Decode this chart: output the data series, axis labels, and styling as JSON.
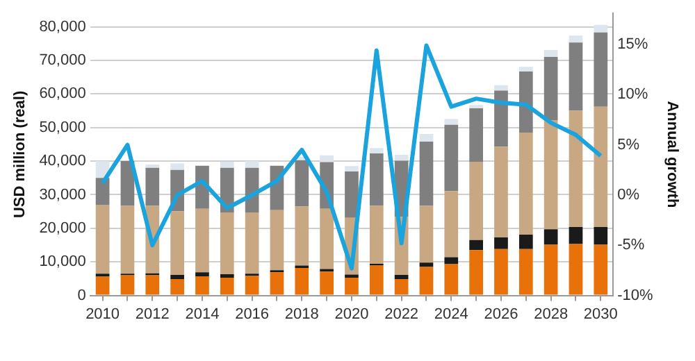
{
  "chart_data": {
    "type": "bar",
    "stacked": true,
    "ylabel": "USD million (real)",
    "y2label": "Annual growth",
    "categories": [
      "2010",
      null,
      "2012",
      null,
      "2014",
      null,
      "2016",
      null,
      "2018",
      null,
      "2020",
      null,
      "2022",
      null,
      "2024",
      null,
      "2026",
      null,
      "2028",
      null,
      "2030"
    ],
    "series": [
      {
        "color": "#e8710a",
        "values": [
          5600,
          6000,
          6000,
          4900,
          5700,
          5300,
          5800,
          6900,
          8200,
          7100,
          5300,
          8900,
          4900,
          8500,
          9300,
          13500,
          13800,
          13800,
          15100,
          15300,
          15100
        ]
      },
      {
        "color": "#1a1a1a",
        "values": [
          900,
          500,
          600,
          1200,
          1200,
          1000,
          700,
          600,
          700,
          800,
          900,
          500,
          1200,
          1300,
          2100,
          3000,
          3500,
          4300,
          4600,
          5100,
          5300
        ]
      },
      {
        "color": "#c8a882",
        "values": [
          20500,
          20200,
          20100,
          19000,
          18900,
          18400,
          18200,
          17900,
          17600,
          17900,
          16900,
          17300,
          17300,
          16900,
          19700,
          23300,
          27000,
          30400,
          32500,
          34600,
          35800
        ]
      },
      {
        "color": "#7f7f7f",
        "values": [
          8000,
          13300,
          11300,
          12300,
          12800,
          13300,
          13300,
          13200,
          13800,
          13900,
          13800,
          15600,
          16700,
          19100,
          19700,
          15900,
          16700,
          18200,
          18800,
          20300,
          22100
        ]
      },
      {
        "color": "#dde6ee",
        "values": [
          5000,
          0,
          1000,
          1900,
          null,
          1800,
          2000,
          null,
          1000,
          2000,
          1600,
          1600,
          1800,
          2300,
          1700,
          1000,
          1600,
          1400,
          2100,
          2100,
          2300
        ]
      },
      {
        "type": "line",
        "axis": "y2",
        "color": "#1aa3dc",
        "values": [
          1.2,
          5.0,
          -5.0,
          0.0,
          1.4,
          -1.3,
          0.0,
          1.4,
          4.5,
          0.3,
          -7.3,
          14.4,
          -4.8,
          14.9,
          8.8,
          9.6,
          9.2,
          9.0,
          7.2,
          6.0,
          3.9
        ]
      }
    ],
    "ylim": [
      0,
      84000
    ],
    "yticks": [
      0,
      {
        "value": 10000,
        "label": "10,000"
      },
      {
        "value": 20000,
        "label": "20,000"
      },
      {
        "value": 30000,
        "label": "30,000"
      },
      {
        "value": 40000,
        "label": "40,000"
      },
      {
        "value": 50000,
        "label": "50,000"
      },
      {
        "value": 60000,
        "label": "60,000"
      },
      {
        "value": 70000,
        "label": "70,000"
      },
      {
        "value": 80000,
        "label": "80,000"
      }
    ],
    "y2lim": [
      -10,
      18.1
    ],
    "y2ticks": [
      {
        "value": -10,
        "label": "-10%"
      },
      {
        "value": -5,
        "label": "-5%"
      },
      {
        "value": 0,
        "label": "0%"
      },
      {
        "value": 5,
        "label": "5%"
      },
      {
        "value": 10,
        "label": "10%"
      },
      {
        "value": 15,
        "label": "15%"
      }
    ],
    "grid": "y",
    "legend": false,
    "marker": "none",
    "line_style": "solid"
  }
}
